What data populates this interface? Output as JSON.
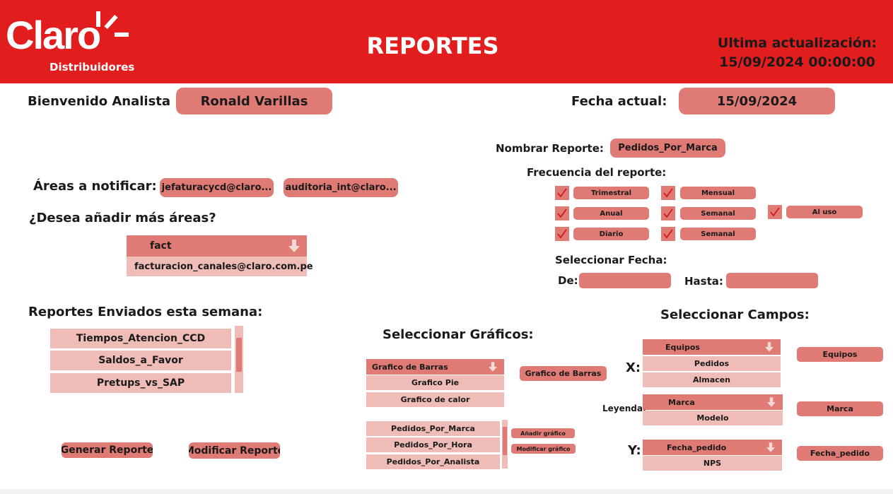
{
  "header": {
    "logo_text": "Claro",
    "logo_sub": "Distribuidores",
    "title": "REPORTES",
    "update_label": "Ultima actualización:",
    "update_value": "15/09/2024 00:00:00",
    "brand_color": "#e21d1d"
  },
  "welcome": {
    "label": "Bienvenido Analista",
    "name": "Ronald Varillas"
  },
  "current_date": {
    "label": "Fecha actual:",
    "value": "15/09/2024"
  },
  "areas": {
    "label": "Áreas a notificar:",
    "emails": [
      "jefaturacycd@claro...",
      "auditoria_int@claro..."
    ],
    "add_label": "¿Desea añadir más áreas?",
    "dropdown_value": "fact",
    "suggestion": "facturacion_canales@claro.com.pe"
  },
  "sent": {
    "label": "Reportes Enviados esta semana:",
    "items": [
      "Tiempos_Atencion_CCD",
      "Saldos_a_Favor",
      "Pretups_vs_SAP"
    ]
  },
  "buttons": {
    "generate": "Generar Reporte",
    "modify": "Modificar Reporte"
  },
  "report": {
    "name_label": "Nombrar Reporte:",
    "name_value": "Pedidos_Por_Marca",
    "freq_label": "Frecuencia del reporte:",
    "freq_options": [
      "Trimestral",
      "Mensual",
      "Anual",
      "Semanal",
      "Diario",
      "Semanal",
      "Al uso"
    ],
    "date_label": "Seleccionar Fecha:",
    "from_label": "De:",
    "to_label": "Hasta:"
  },
  "graphs": {
    "label": "Seleccionar Gráficos:",
    "dropdown_value": "Grafico de Barras",
    "options": [
      "Grafico Pie",
      "Grafico de calor"
    ],
    "selected": "Grafico de Barras",
    "list": [
      "Pedidos_Por_Marca",
      "Pedidos_Por_Hora",
      "Pedidos_Por_Analista"
    ],
    "add_label": "Añadir gráfico",
    "modify_label": "Modificar gráfico"
  },
  "fields": {
    "label": "Seleccionar Campos:",
    "x_label": "X:",
    "x_dropdown": "Equipos",
    "x_options": [
      "Pedidos",
      "Almacen"
    ],
    "x_selected": "Equipos",
    "legend_label": "Leyenda:",
    "legend_dropdown": "Marca",
    "legend_options": [
      "Modelo"
    ],
    "legend_selected": "Marca",
    "y_label": "Y:",
    "y_dropdown": "Fecha_pedido",
    "y_options": [
      "NPS"
    ],
    "y_selected": "Fecha_pedido"
  }
}
